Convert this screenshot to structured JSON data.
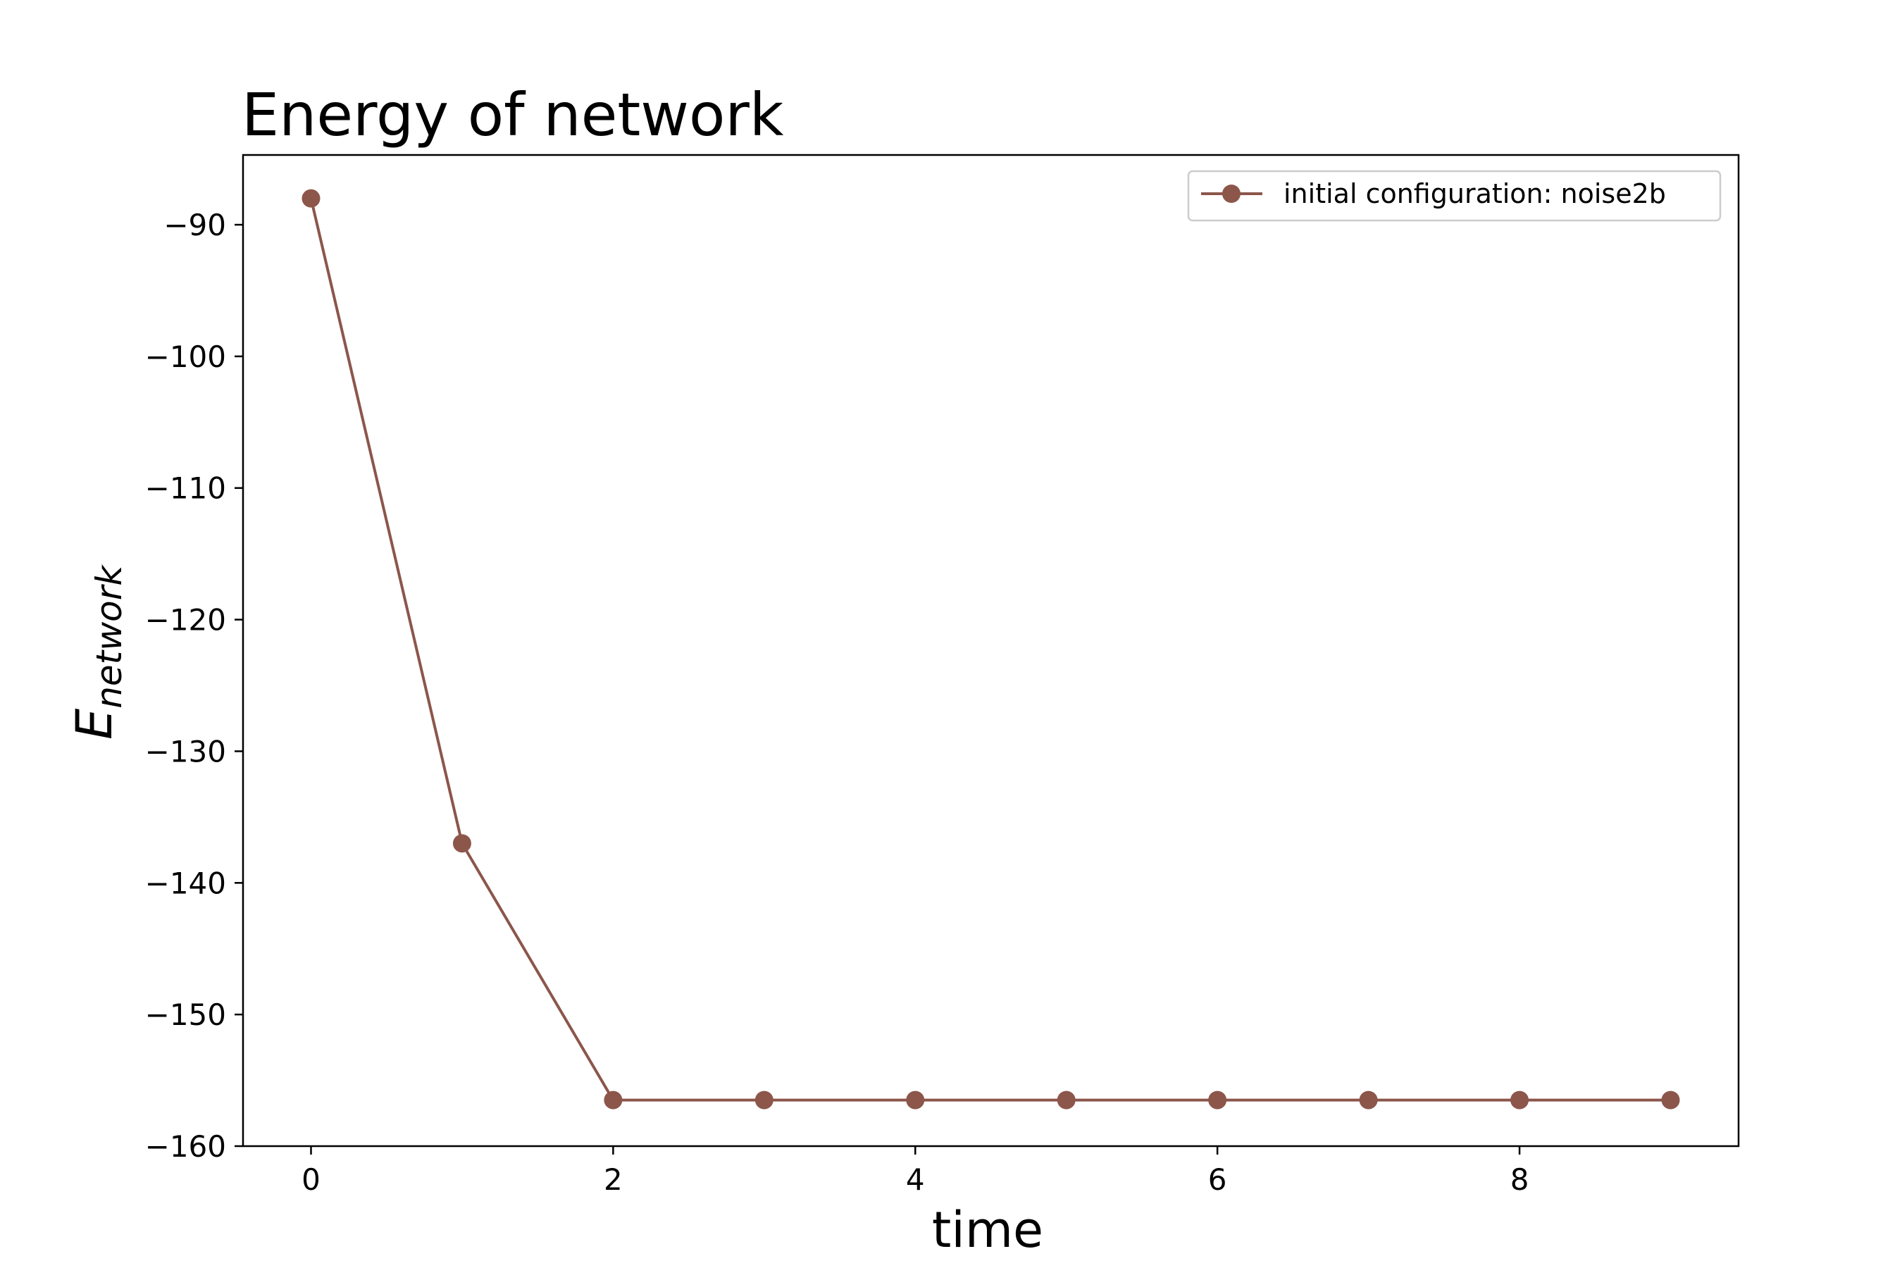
{
  "chart_data": {
    "type": "line",
    "title": "Energy of network",
    "xlabel": "time",
    "ylabel": {
      "main": "E",
      "subscript": "network"
    },
    "x": [
      0,
      1,
      2,
      3,
      4,
      5,
      6,
      7,
      8,
      9
    ],
    "series": [
      {
        "name": "initial configuration: noise2b",
        "values": [
          -88,
          -137,
          -156.5,
          -156.5,
          -156.5,
          -156.5,
          -156.5,
          -156.5,
          -156.5,
          -156.5
        ],
        "color": "#8c564b",
        "marker": "circle"
      }
    ],
    "xlim": [
      -0.45,
      9.45
    ],
    "ylim": [
      -160,
      -84.7
    ],
    "x_ticks": [
      0,
      2,
      4,
      6,
      8
    ],
    "x_tick_labels": [
      "0",
      "2",
      "4",
      "6",
      "8"
    ],
    "y_ticks": [
      -90,
      -100,
      -110,
      -120,
      -130,
      -140,
      -150,
      -160
    ],
    "y_tick_labels": [
      "−90",
      "−100",
      "−110",
      "−120",
      "−130",
      "−140",
      "−150",
      "−160"
    ],
    "grid": false,
    "legend_position": "top-right"
  }
}
